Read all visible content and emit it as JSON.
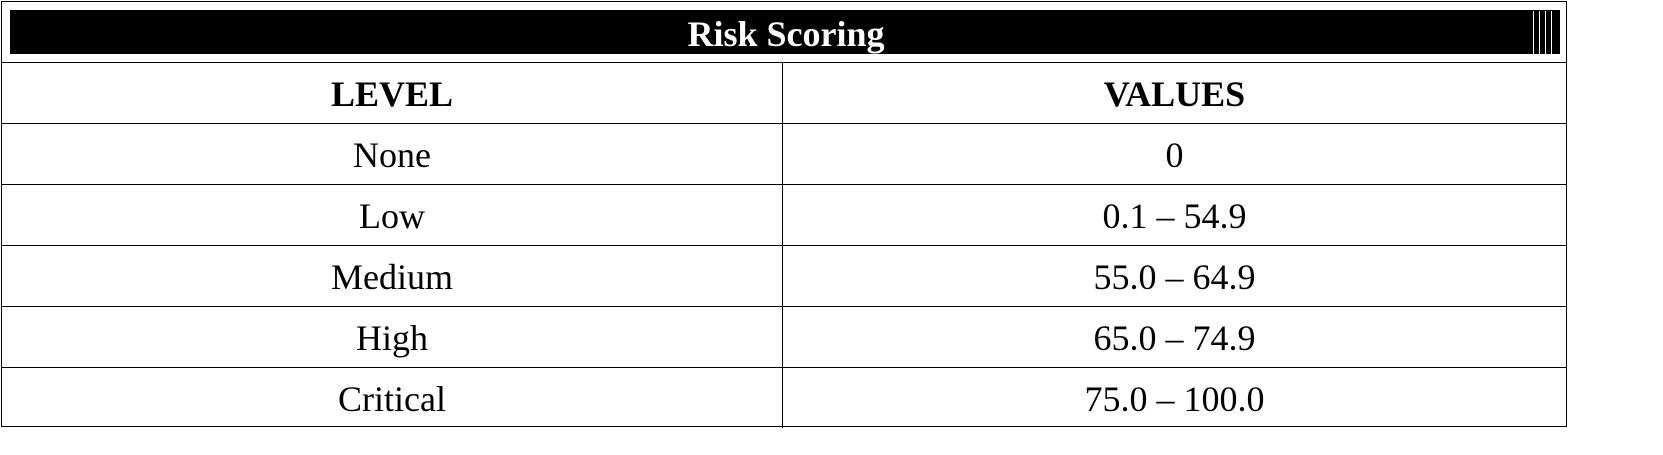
{
  "title": "Risk Scoring",
  "headers": {
    "level": "LEVEL",
    "values": "VALUES"
  },
  "rows": [
    {
      "level": "None",
      "values": "0"
    },
    {
      "level": "Low",
      "values": "0.1 – 54.9"
    },
    {
      "level": "Medium",
      "values": "55.0 – 64.9"
    },
    {
      "level": "High",
      "values": "65.0 – 74.9"
    },
    {
      "level": "Critical",
      "values": "75.0 – 100.0"
    }
  ]
}
